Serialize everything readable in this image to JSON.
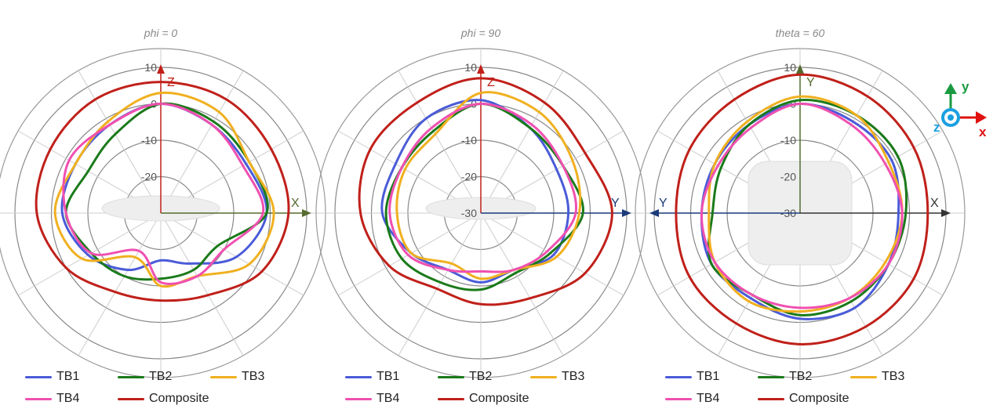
{
  "chart_data": [
    {
      "type": "polar",
      "title": "phi = 0",
      "rlim": [
        -30,
        10
      ],
      "rticks": [
        "10",
        "0",
        "-10",
        "-20",
        "-30"
      ],
      "angle_step_deg": 30,
      "axis_up": "Z",
      "axis_right": "X",
      "axis_left": "",
      "series": [
        {
          "name": "TB1",
          "values": [
            0,
            -2,
            -3,
            -1,
            -6,
            -14,
            -17,
            -12,
            -7,
            -3,
            -3,
            -2
          ]
        },
        {
          "name": "TB2",
          "values": [
            0,
            -1,
            -2,
            -1,
            -12,
            -12,
            -12,
            -10,
            -8,
            -4,
            -7,
            -5
          ]
        },
        {
          "name": "TB3",
          "values": [
            3,
            2,
            -2,
            1,
            -2,
            -10,
            -10,
            -16,
            -5,
            -1,
            -3,
            -1
          ]
        },
        {
          "name": "TB4",
          "values": [
            0,
            -2,
            -4,
            -2,
            -10,
            -10,
            -11,
            -18,
            -8,
            -4,
            -1,
            -2
          ]
        },
        {
          "name": "Composite",
          "values": [
            6,
            6,
            5,
            5,
            2,
            -4,
            -6,
            -5,
            0,
            4,
            5,
            6
          ]
        }
      ]
    },
    {
      "type": "polar",
      "title": "phi = 90",
      "rlim": [
        -30,
        10
      ],
      "rticks": [
        "10",
        "0",
        "-10",
        "-20",
        "-30"
      ],
      "angle_step_deg": 30,
      "axis_up": "Z",
      "axis_right": "Y",
      "axis_left": "",
      "series": [
        {
          "name": "TB1",
          "values": [
            1,
            -3,
            -6,
            -6,
            -7,
            -12,
            -11,
            -12,
            -8,
            -3,
            -3,
            0
          ]
        },
        {
          "name": "TB2",
          "values": [
            0,
            -3,
            -4,
            -2,
            -8,
            -11,
            -9,
            -8,
            -5,
            -4,
            -5,
            -4
          ]
        },
        {
          "name": "TB3",
          "values": [
            3,
            2,
            -1,
            -3,
            -6,
            -12,
            -12,
            -14,
            -8,
            -7,
            -6,
            -5
          ]
        },
        {
          "name": "TB4",
          "values": [
            0,
            -2,
            -4,
            -4,
            -9,
            -12,
            -14,
            -12,
            -7,
            -5,
            -5,
            -3
          ]
        },
        {
          "name": "Composite",
          "values": [
            7,
            5,
            3,
            6,
            3,
            -3,
            -5,
            -6,
            -1,
            3,
            5,
            5
          ]
        }
      ]
    },
    {
      "type": "polar",
      "title": "theta = 60",
      "rlim": [
        -30,
        10
      ],
      "rticks": [
        "10",
        "0",
        "-10",
        "-20",
        "-30"
      ],
      "angle_step_deg": 30,
      "axis_up": "Y",
      "axis_right": "X",
      "axis_left": "Y",
      "series": [
        {
          "name": "TB1",
          "values": [
            0,
            -1,
            -1,
            -3,
            -2,
            0,
            -1,
            -3,
            -2,
            -3,
            -3,
            -2
          ]
        },
        {
          "name": "TB2",
          "values": [
            1,
            1,
            1,
            -1,
            -2,
            -2,
            -2,
            -4,
            -2,
            -6,
            -5,
            -2
          ]
        },
        {
          "name": "TB3",
          "values": [
            2,
            1,
            -2,
            -2,
            -3,
            -3,
            -3,
            -2,
            -3,
            -5,
            -3,
            -1
          ]
        },
        {
          "name": "TB4",
          "values": [
            0,
            -2,
            -3,
            -2,
            -2,
            -3,
            -4,
            -4,
            -3,
            -3,
            -4,
            -3
          ]
        },
        {
          "name": "Composite",
          "values": [
            8,
            7,
            6,
            5,
            6,
            6,
            6,
            5,
            5,
            4,
            5,
            6
          ]
        }
      ]
    }
  ],
  "colors": {
    "TB1": "#4a5bd8",
    "TB2": "#1a7a1a",
    "TB3": "#f0b020",
    "TB4": "#f050b0",
    "Composite": "#c0201a"
  },
  "legend": [
    "TB1",
    "TB2",
    "TB3",
    "TB4",
    "Composite"
  ],
  "orientation_icon": {
    "x": "x",
    "y": "y",
    "z": "z"
  }
}
